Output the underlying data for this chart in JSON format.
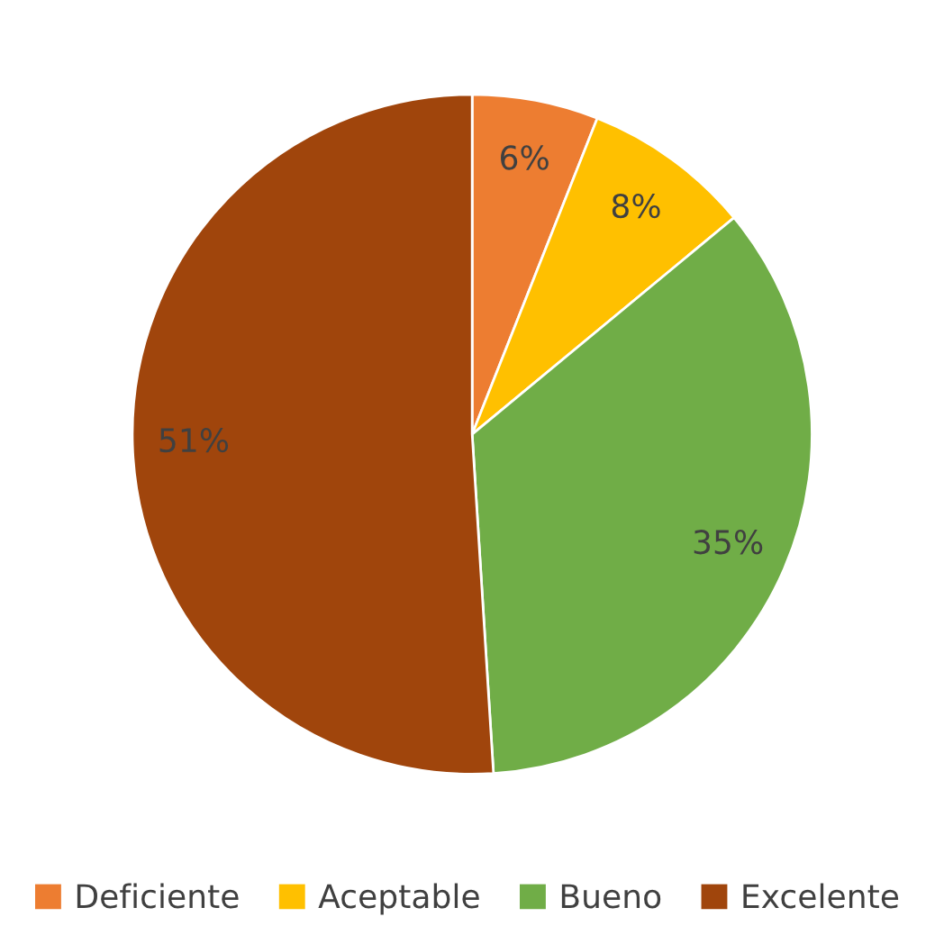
{
  "chart_data": {
    "type": "pie",
    "categories": [
      "Deficiente",
      "Aceptable",
      "Bueno",
      "Excelente"
    ],
    "values": [
      6,
      8,
      35,
      51
    ],
    "value_labels": [
      "6%",
      "8%",
      "35%",
      "51%"
    ],
    "colors": [
      "#ed7d31",
      "#ffc000",
      "#70ad47",
      "#a0450c"
    ],
    "legend": "bottom"
  }
}
